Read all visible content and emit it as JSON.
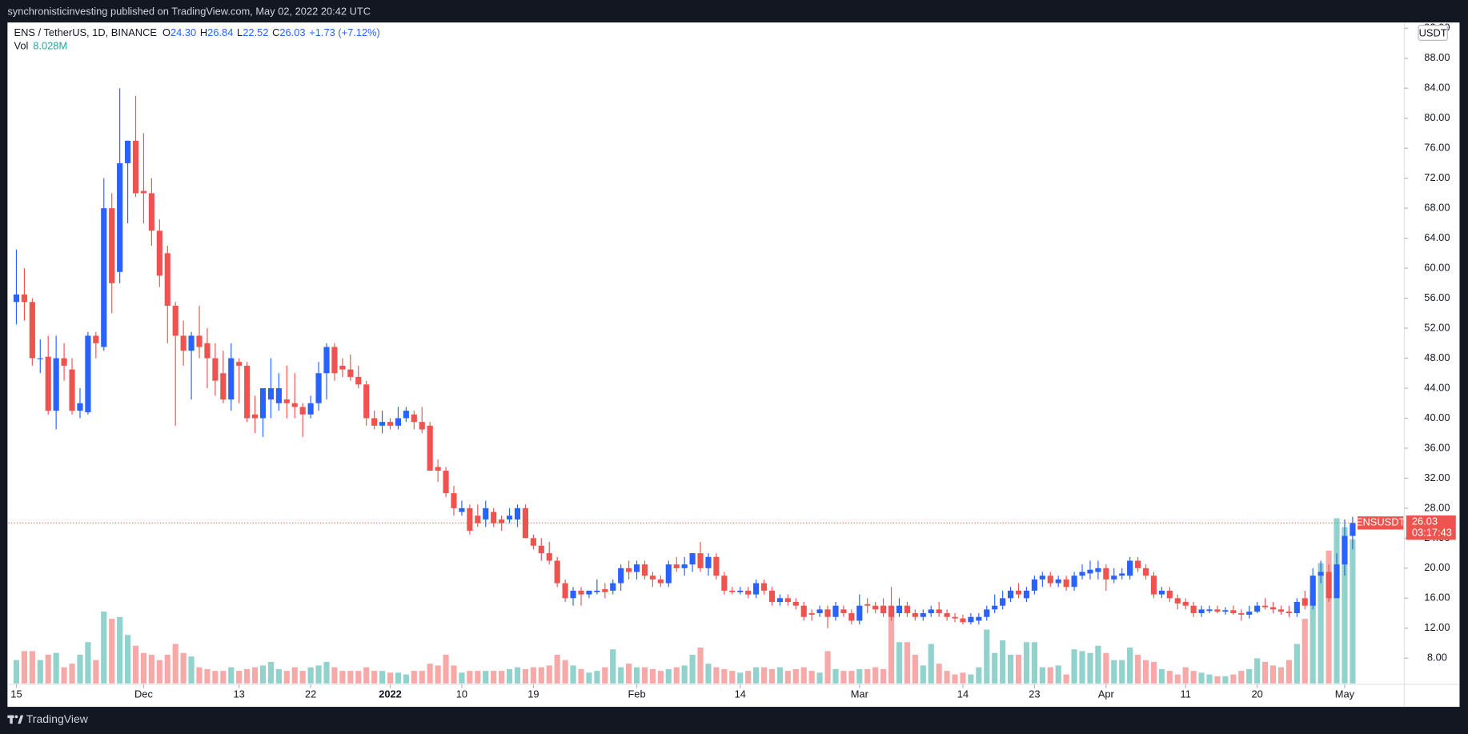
{
  "banner": "synchronisticinvesting published on TradingView.com, May 02, 2022 20:42 UTC",
  "footer": "TradingView",
  "chart_data": {
    "type": "candlestick",
    "legend": {
      "symbol": "ENS / TetherUS, 1D, BINANCE",
      "open_label": "O",
      "open": "24.30",
      "high_label": "H",
      "high": "26.84",
      "low_label": "L",
      "low": "22.52",
      "close_label": "C",
      "close": "26.03",
      "change": "+1.73",
      "change_pct": "(+7.12%)",
      "vol_label": "Vol",
      "vol_value": "8.028M"
    },
    "currency": "USDT",
    "symbol_tag": "ENSUSDT",
    "countdown": "03:17:43",
    "candles": {
      "up_color": "#2962ff",
      "down_color": "#ef5350",
      "open": [
        55.5,
        56.5,
        55.5,
        48,
        48.2,
        41,
        48,
        46.5,
        41,
        40.8,
        51,
        49.5,
        68,
        59.5,
        74,
        77,
        70.3,
        70,
        65,
        62,
        55,
        51,
        49,
        51,
        50,
        48,
        46,
        42.5,
        47.5,
        47,
        40.5,
        40,
        42.5,
        42,
        42.5,
        42,
        41.5,
        40.5,
        42,
        46,
        49.5,
        47,
        46.5,
        45.5,
        44.5,
        40,
        39,
        39.5,
        39,
        40,
        40.5,
        39.5,
        39,
        33.5,
        33,
        30,
        27.5,
        28,
        27,
        26.5,
        27.5,
        26.5,
        26.5,
        26.5,
        28,
        24,
        23,
        22,
        21,
        18,
        16,
        17,
        16.5,
        16.8,
        17.2,
        17,
        18,
        20,
        19.5,
        20.5,
        19,
        18.5,
        18,
        20.5,
        20,
        20.5,
        22,
        20,
        21.5,
        19,
        17,
        16.8,
        17,
        16.5,
        18,
        17,
        15.5,
        16,
        15.5,
        15,
        14,
        14,
        14.5,
        13.5,
        14.5,
        14,
        13,
        15.2,
        15,
        15,
        15,
        14,
        15,
        14,
        13.5,
        14,
        14.5,
        14,
        13.5,
        13.3,
        12.8,
        13,
        13.5,
        14.5,
        15,
        16,
        17,
        16,
        17,
        18.5,
        19,
        18,
        18.5,
        17.5,
        19,
        19.3,
        19.5,
        20,
        18.5,
        19,
        19,
        21,
        20,
        19,
        16.5,
        17,
        16,
        15.5,
        15,
        14,
        14.3,
        14.5,
        14.2,
        14.4,
        14,
        13.8,
        14.2,
        15,
        14.8,
        14.5,
        14.2,
        14,
        16,
        15,
        19,
        19.5,
        16,
        20.5,
        24.3
      ],
      "high": [
        62.5,
        60,
        56,
        50.5,
        51,
        51,
        50,
        48,
        44,
        51.5,
        51.5,
        72,
        70,
        84,
        77,
        83,
        78,
        72,
        66.5,
        63,
        55.5,
        53,
        51.5,
        55,
        52,
        50,
        49,
        50,
        48,
        47.5,
        43,
        44,
        48,
        46,
        47,
        46,
        42,
        43,
        47.5,
        50,
        50,
        48,
        48.5,
        47,
        45,
        41,
        41,
        40,
        41.5,
        41.5,
        41,
        41.5,
        39.5,
        34.5,
        33.5,
        31,
        29,
        28.5,
        28.5,
        29,
        28,
        27,
        28,
        28.5,
        28.5,
        24.5,
        24,
        23.5,
        21.5,
        18.5,
        17.5,
        17.5,
        17,
        18.5,
        18,
        18.5,
        20.5,
        21,
        21,
        21,
        19.5,
        19,
        21,
        21.5,
        21.5,
        22,
        23.5,
        22,
        22,
        19.5,
        17.5,
        17.5,
        17.5,
        18.5,
        18.5,
        17.5,
        16.5,
        16.5,
        16,
        15.5,
        14.5,
        15,
        15,
        15.5,
        15,
        14.5,
        16.5,
        16,
        15.5,
        16,
        17.5,
        16,
        15.5,
        14.5,
        14.5,
        15,
        15.5,
        14.5,
        14,
        13.8,
        14,
        14,
        15,
        16.5,
        17,
        17.5,
        18,
        17.5,
        19,
        19.5,
        19.5,
        19,
        19,
        19.5,
        20.5,
        21,
        21,
        20.5,
        20,
        20,
        21.5,
        21.5,
        20.5,
        19.5,
        17.5,
        17.5,
        16.5,
        16,
        15.5,
        15,
        15,
        15,
        14.8,
        15,
        14.5,
        15,
        15.5,
        16,
        15.5,
        15,
        15,
        16,
        17,
        20,
        21,
        20.5,
        22,
        26.5,
        26.84
      ],
      "low": [
        52.5,
        53,
        47,
        46,
        40.5,
        38.5,
        45,
        40.5,
        40,
        40.5,
        48,
        49,
        54,
        58,
        66,
        69.5,
        66,
        63,
        57.5,
        50,
        39,
        47,
        42.5,
        48,
        44,
        43,
        42,
        41,
        42,
        39.5,
        38,
        37.5,
        40,
        41,
        40,
        40,
        37.5,
        40,
        41,
        42.5,
        45,
        45.5,
        45,
        44,
        39,
        38.5,
        38,
        38.5,
        38.5,
        39.5,
        38.5,
        38,
        33,
        31.5,
        29.5,
        27,
        27,
        24.5,
        25.5,
        25.5,
        25.5,
        25,
        26,
        25.5,
        24,
        22.5,
        21,
        20.5,
        17.5,
        15.5,
        15,
        15,
        16,
        16.5,
        16,
        16.5,
        17,
        18.5,
        18.5,
        18.5,
        17.5,
        17.5,
        17.5,
        19.5,
        19,
        19.5,
        19.5,
        19,
        18.5,
        16.5,
        16.5,
        16.5,
        16,
        16,
        16.5,
        15,
        15,
        15,
        14.5,
        13,
        13,
        13.5,
        12,
        13,
        13.5,
        12.5,
        12.5,
        14,
        14,
        13.5,
        13,
        13.5,
        13.5,
        13,
        13,
        13.5,
        13.5,
        13,
        12.8,
        12.5,
        12.5,
        12.5,
        13,
        14,
        14.5,
        15.5,
        16,
        15.5,
        16.5,
        17.5,
        17.5,
        17.5,
        17,
        17,
        18.5,
        18.5,
        18.5,
        17,
        18,
        18.5,
        18.5,
        19.5,
        18.5,
        16,
        16,
        15.5,
        14.5,
        14.5,
        13.5,
        13.5,
        14,
        14,
        13.8,
        13.8,
        13,
        13.3,
        14,
        14.5,
        14,
        13.8,
        13.5,
        13.5,
        14.5,
        14.5,
        18,
        15.5,
        16,
        19,
        22.52
      ],
      "close": [
        56.5,
        55.5,
        48,
        48,
        41,
        48,
        47,
        41,
        42,
        51,
        50,
        68,
        58,
        74,
        77,
        70,
        70,
        65,
        59,
        55,
        51,
        49,
        51,
        49.5,
        48,
        45,
        42.5,
        48,
        47,
        40,
        40,
        44,
        44,
        44,
        42,
        41.5,
        40.5,
        42,
        46,
        49.5,
        46,
        46.5,
        45.5,
        44.5,
        40,
        39,
        39.5,
        39,
        40,
        41,
        39.5,
        38.5,
        33,
        33,
        30,
        28,
        28,
        25,
        26,
        28,
        26,
        26,
        27,
        28,
        24,
        23,
        22,
        21,
        18,
        16,
        17,
        16.5,
        17,
        17,
        16.8,
        18,
        20,
        19.5,
        20.5,
        19,
        18.5,
        18,
        20.5,
        20,
        20.5,
        22,
        20,
        21.5,
        19,
        17,
        16.8,
        17,
        16.5,
        18,
        17,
        15.5,
        16,
        15.5,
        15,
        13.5,
        13.8,
        14.5,
        13.5,
        15,
        14,
        13,
        15,
        15,
        14.5,
        14,
        13.5,
        15,
        14,
        13.5,
        14,
        14.5,
        14,
        13.5,
        13.3,
        12.8,
        13.5,
        13.5,
        14.5,
        15,
        16,
        17,
        16.5,
        17,
        18.5,
        19,
        18,
        18.5,
        17.5,
        19,
        19.5,
        19.8,
        20,
        18.5,
        19,
        19.3,
        21,
        20,
        19,
        16.5,
        17,
        16,
        15.3,
        15,
        14,
        14.5,
        14.5,
        14.2,
        14.4,
        14,
        13.8,
        14.2,
        15,
        14.8,
        14.5,
        14.2,
        14,
        15.5,
        15,
        19,
        19.5,
        16,
        20.5,
        24.3,
        26.03
      ]
    },
    "volume": {
      "name": "Vol",
      "up_color": "rgba(38,166,154,0.5)",
      "down_color": "rgba(239,83,80,0.5)",
      "values": [
        1.3,
        1.8,
        1.8,
        1.3,
        1.6,
        1.7,
        0.9,
        1.1,
        1.6,
        2.3,
        1.3,
        4.0,
        3.6,
        3.7,
        2.7,
        2.1,
        1.7,
        1.6,
        1.3,
        1.6,
        2.2,
        1.7,
        1.5,
        0.9,
        0.8,
        0.7,
        0.7,
        0.9,
        0.7,
        0.8,
        0.9,
        1.0,
        1.2,
        0.8,
        0.7,
        0.9,
        0.7,
        0.9,
        1.0,
        1.2,
        0.9,
        0.7,
        0.7,
        0.7,
        0.9,
        0.7,
        0.7,
        0.6,
        0.6,
        0.5,
        0.7,
        0.7,
        1.1,
        1.0,
        1.6,
        1.0,
        0.6,
        0.7,
        0.7,
        0.7,
        0.7,
        0.7,
        0.8,
        0.9,
        0.8,
        0.9,
        0.9,
        1.0,
        1.6,
        1.3,
        1.0,
        0.8,
        0.6,
        0.7,
        0.9,
        1.9,
        0.9,
        1.1,
        0.9,
        0.9,
        0.8,
        0.7,
        0.8,
        0.9,
        1.0,
        1.6,
        2.0,
        1.1,
        0.9,
        0.8,
        0.7,
        0.6,
        0.7,
        0.9,
        0.9,
        0.8,
        0.9,
        0.7,
        0.8,
        0.9,
        0.7,
        0.6,
        1.8,
        0.8,
        0.7,
        0.7,
        0.8,
        0.8,
        0.9,
        0.8,
        3.9,
        2.3,
        2.3,
        1.6,
        1.0,
        2.2,
        1.1,
        0.7,
        0.5,
        0.6,
        0.5,
        0.9,
        3.0,
        1.7,
        2.4,
        1.6,
        1.6,
        2.3,
        2.3,
        0.9,
        0.9,
        1.0,
        0.5,
        1.9,
        1.8,
        1.7,
        2.1,
        1.7,
        1.3,
        1.3,
        2.0,
        1.6,
        1.3,
        1.2,
        0.8,
        0.7,
        0.5,
        0.9,
        0.7,
        0.6,
        0.5,
        0.4,
        0.4,
        0.5,
        0.7,
        0.8,
        1.4,
        1.2,
        1.0,
        0.9,
        1.3,
        2.2,
        3.6,
        5.2,
        6.7,
        7.4,
        9.2,
        8.7,
        8.028
      ]
    },
    "xlim": [
      -1,
      174.5
    ],
    "xticks": [
      {
        "value": 0,
        "label": "15"
      },
      {
        "value": 16,
        "label": "Dec"
      },
      {
        "value": 28,
        "label": "13"
      },
      {
        "value": 37,
        "label": "22"
      },
      {
        "value": 47,
        "label": "2022"
      },
      {
        "value": 56,
        "label": "10"
      },
      {
        "value": 65,
        "label": "19"
      },
      {
        "value": 78,
        "label": "Feb"
      },
      {
        "value": 91,
        "label": "14"
      },
      {
        "value": 106,
        "label": "Mar"
      },
      {
        "value": 119,
        "label": "14"
      },
      {
        "value": 128,
        "label": "23"
      },
      {
        "value": 137,
        "label": "Apr"
      },
      {
        "value": 147,
        "label": "11"
      },
      {
        "value": 156,
        "label": "20"
      },
      {
        "value": 167,
        "label": "May"
      }
    ],
    "ylim": [
      4.63,
      92.77
    ],
    "yticks": [
      {
        "value": 8,
        "label": "8.00"
      },
      {
        "value": 12,
        "label": "12.00"
      },
      {
        "value": 16,
        "label": "16.00"
      },
      {
        "value": 20,
        "label": "20.00"
      },
      {
        "value": 24,
        "label": "24.00"
      },
      {
        "value": 28,
        "label": "28.00"
      },
      {
        "value": 32,
        "label": "32.00"
      },
      {
        "value": 36,
        "label": "36.00"
      },
      {
        "value": 40,
        "label": "40.00"
      },
      {
        "value": 44,
        "label": "44.00"
      },
      {
        "value": 48,
        "label": "48.00"
      },
      {
        "value": 52,
        "label": "52.00"
      },
      {
        "value": 56,
        "label": "56.00"
      },
      {
        "value": 60,
        "label": "60.00"
      },
      {
        "value": 64,
        "label": "64.00"
      },
      {
        "value": 68,
        "label": "68.00"
      },
      {
        "value": 72,
        "label": "72.00"
      },
      {
        "value": 76,
        "label": "76.00"
      },
      {
        "value": 80,
        "label": "80.00"
      },
      {
        "value": 84,
        "label": "84.00"
      },
      {
        "value": 88,
        "label": "88.00"
      },
      {
        "value": 92,
        "label": "92.00"
      }
    ],
    "grid": false
  }
}
